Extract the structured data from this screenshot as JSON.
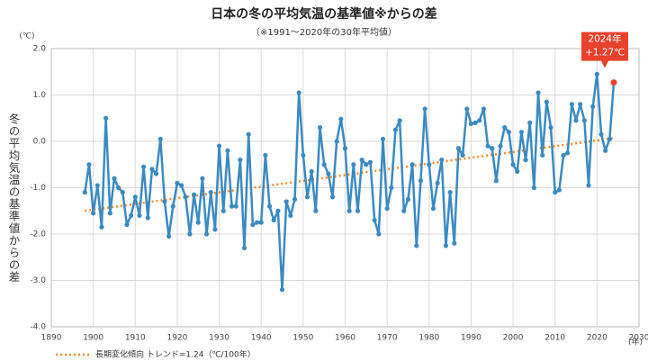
{
  "chart_data": {
    "type": "line",
    "title": "日本の冬の平均気温の基準値※からの差",
    "subtitle": "（※1991～2020年の30年平均値）",
    "y_unit": "(℃)",
    "x_unit": "(年)",
    "y_label": "冬の平均気温の基準値からの差",
    "x": [
      1898,
      1899,
      1900,
      1901,
      1902,
      1903,
      1904,
      1905,
      1906,
      1907,
      1908,
      1909,
      1910,
      1911,
      1912,
      1913,
      1914,
      1915,
      1916,
      1917,
      1918,
      1919,
      1920,
      1921,
      1922,
      1923,
      1924,
      1925,
      1926,
      1927,
      1928,
      1929,
      1930,
      1931,
      1932,
      1933,
      1934,
      1935,
      1936,
      1937,
      1938,
      1939,
      1940,
      1941,
      1942,
      1943,
      1944,
      1945,
      1946,
      1947,
      1948,
      1949,
      1950,
      1951,
      1952,
      1953,
      1954,
      1955,
      1956,
      1957,
      1958,
      1959,
      1960,
      1961,
      1962,
      1963,
      1964,
      1965,
      1966,
      1967,
      1968,
      1969,
      1970,
      1971,
      1972,
      1973,
      1974,
      1975,
      1976,
      1977,
      1978,
      1979,
      1980,
      1981,
      1982,
      1983,
      1984,
      1985,
      1986,
      1987,
      1988,
      1989,
      1990,
      1991,
      1992,
      1993,
      1994,
      1995,
      1996,
      1997,
      1998,
      1999,
      2000,
      2001,
      2002,
      2003,
      2004,
      2005,
      2006,
      2007,
      2008,
      2009,
      2010,
      2011,
      2012,
      2013,
      2014,
      2015,
      2016,
      2017,
      2018,
      2019,
      2020,
      2021,
      2022,
      2023,
      2024
    ],
    "series": [
      {
        "color": "#3b8ac2",
        "values": [
          -1.1,
          -0.5,
          -1.55,
          -0.95,
          -1.85,
          0.5,
          -1.55,
          -0.8,
          -1.0,
          -1.1,
          -1.8,
          -1.6,
          -1.2,
          -1.6,
          -0.55,
          -1.65,
          -0.6,
          -0.7,
          0.05,
          -1.3,
          -2.05,
          -1.4,
          -0.9,
          -0.95,
          -1.2,
          -2.0,
          -1.15,
          -1.75,
          -0.8,
          -2.0,
          -1.1,
          -1.9,
          -0.1,
          -1.5,
          -0.2,
          -1.4,
          -1.4,
          -0.4,
          -2.3,
          0.15,
          -1.8,
          -1.75,
          -1.75,
          -0.3,
          -1.4,
          -1.7,
          -1.5,
          -3.2,
          -1.3,
          -1.6,
          -1.25,
          1.05,
          -0.3,
          -1.2,
          -0.65,
          -1.5,
          0.3,
          -0.5,
          -0.7,
          -1.2,
          0.0,
          0.48,
          -0.15,
          -1.5,
          -0.5,
          -1.5,
          -0.4,
          -0.5,
          -0.45,
          -1.7,
          -2.0,
          0.05,
          -1.45,
          -1.0,
          0.25,
          0.45,
          -1.5,
          -1.25,
          -0.5,
          -2.25,
          -0.85,
          0.7,
          -0.5,
          -1.45,
          -0.9,
          -0.4,
          -2.25,
          -1.1,
          -2.2,
          -0.15,
          -0.3,
          0.7,
          0.38,
          0.4,
          0.45,
          0.7,
          -0.1,
          -0.15,
          -0.85,
          -0.1,
          0.3,
          0.2,
          -0.5,
          -0.65,
          0.2,
          -0.4,
          0.4,
          -1.0,
          1.05,
          -0.3,
          0.85,
          0.3,
          -1.1,
          -1.05,
          -0.3,
          -0.25,
          0.8,
          0.45,
          0.8,
          0.45,
          -0.95,
          0.75,
          1.45,
          0.15,
          -0.2,
          0.05,
          1.27
        ]
      }
    ],
    "trend": {
      "name": "長期変化傾向 トレンド=1.24（℃/100年）",
      "color": "#f08a24",
      "x": [
        1898,
        2024
      ],
      "values": [
        -1.5,
        0.07
      ]
    },
    "annotation": {
      "lines": [
        "2024年",
        "+1.27℃"
      ],
      "color": "#e8412c"
    },
    "xlim": [
      1890,
      2030
    ],
    "xticks": [
      1890,
      1900,
      1910,
      1920,
      1930,
      1940,
      1950,
      1960,
      1970,
      1980,
      1990,
      2000,
      2010,
      2020,
      2030
    ],
    "ylim": [
      -4.0,
      2.0
    ],
    "yticks": [
      {
        "value": -4.0,
        "label": "-4.0"
      },
      {
        "value": -3.0,
        "label": "-3.0"
      },
      {
        "value": -2.0,
        "label": "-2.0"
      },
      {
        "value": -1.0,
        "label": "-1.0"
      },
      {
        "value": 0.0,
        "label": "0.0"
      },
      {
        "value": 1.0,
        "label": "1.0"
      },
      {
        "value": 2.0,
        "label": "2.0"
      }
    ],
    "grid": true
  }
}
